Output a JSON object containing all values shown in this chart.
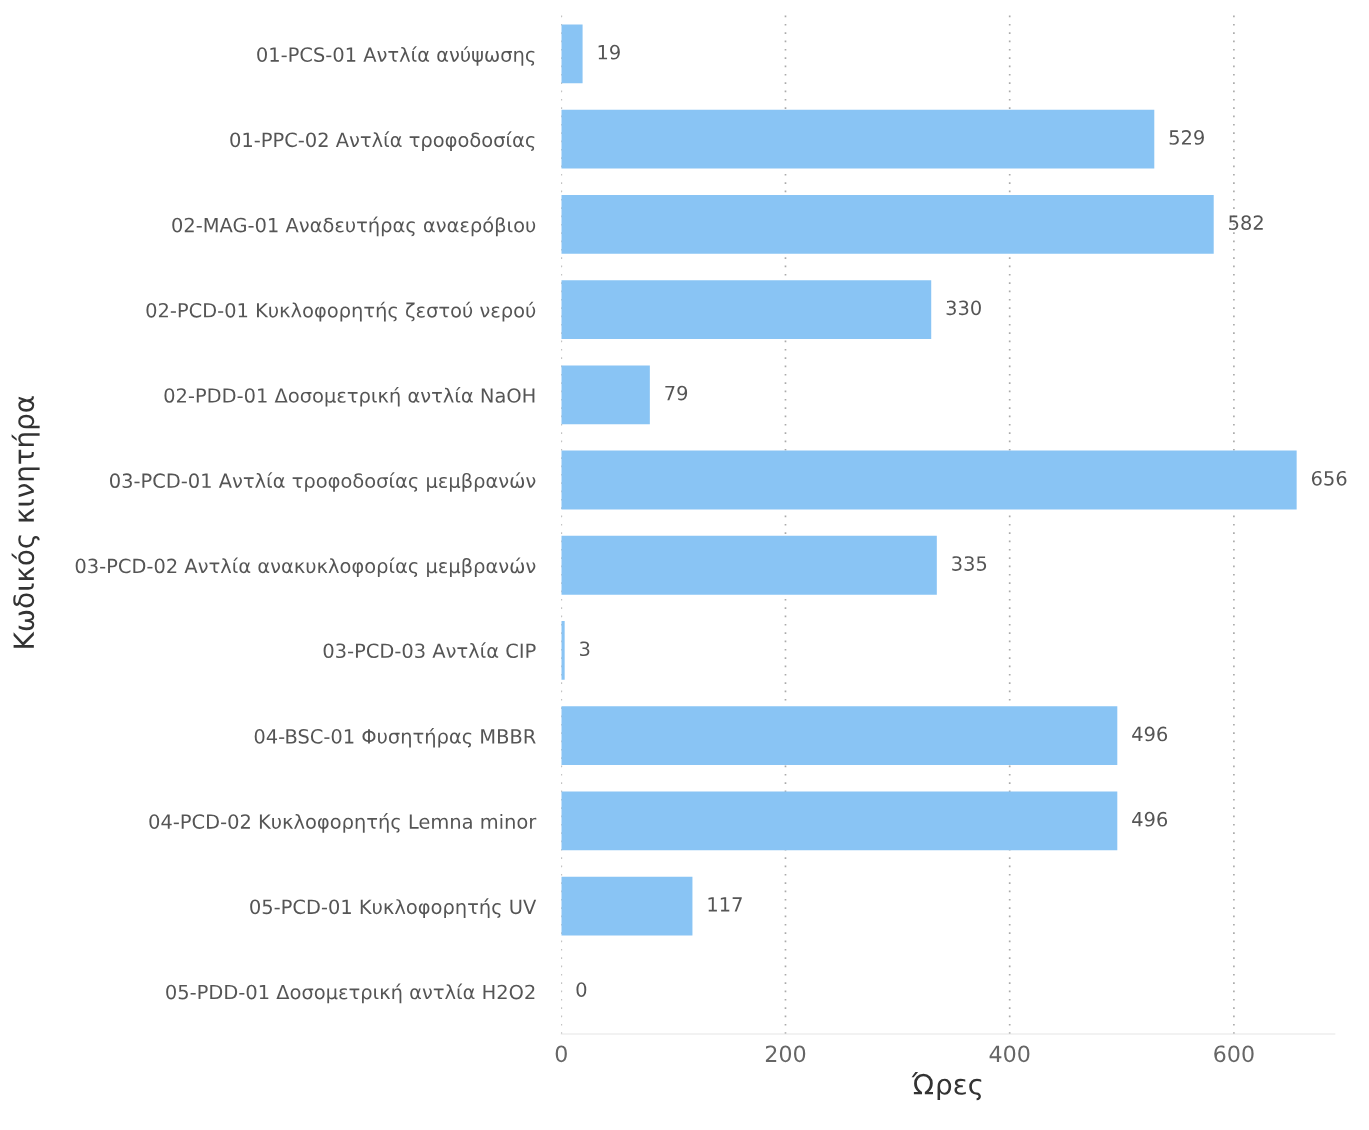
{
  "chart_data": {
    "type": "bar",
    "orientation": "horizontal",
    "xlabel": "Ώρες",
    "ylabel": "Κωδικός κινητήρα",
    "categories": [
      "01-PCS-01 Αντλία ανύψωσης",
      "01-PPC-02 Αντλία τροφοδοσίας",
      "02-MAG-01 Αναδευτήρας αναερόβιου",
      "02-PCD-01 Κυκλοφορητής ζεστού νερού",
      "02-PDD-01 Δοσομετρική αντλία NaOH",
      "03-PCD-01 Αντλία τροφοδοσίας μεμβρανών",
      "03-PCD-02 Αντλία ανακυκλοφορίας μεμβρανών",
      "03-PCD-03 Αντλία CIP",
      "04-BSC-01 Φυσητήρας MBBR",
      "04-PCD-02 Κυκλοφορητής Lemna minor",
      "05-PCD-01 Κυκλοφορητής UV",
      "05-PDD-01 Δοσομετρική αντλία H2O2"
    ],
    "values": [
      19,
      529,
      582,
      330,
      79,
      656,
      335,
      3,
      496,
      496,
      117,
      0
    ],
    "color": "#89c4f4",
    "data_labels": true,
    "xlim": [
      0,
      690
    ],
    "xticks": [
      0,
      200,
      400,
      600
    ],
    "grid": "x",
    "legend": false
  }
}
